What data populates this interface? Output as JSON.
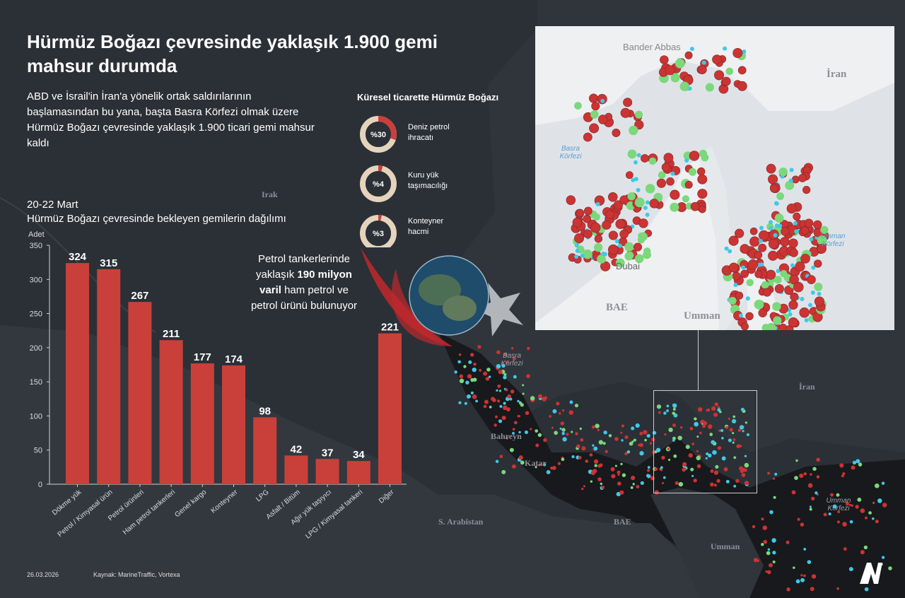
{
  "title": "Hürmüz Boğazı çevresinde yaklaşık 1.900 gemi mahsur durumda",
  "subtitle": "ABD ve İsrail'in İran'a yönelik ortak saldırılarının başlamasından bu yana, başta Basra Körfezi olmak üzere Hürmüz Boğazı çevresinde yaklaşık 1.900 ticari gemi mahsur kaldı",
  "chart_heading": {
    "date_range": "20-22 Mart",
    "description": "Hürmüz Boğazı çevresinde bekleyen gemilerin dağılımı"
  },
  "note": {
    "pre": "Petrol tankerlerinde yaklaşık ",
    "bold": "190 milyon varil",
    "post": " ham petrol ve petrol ürünü bulunuyor"
  },
  "trade_share": {
    "title": "Küresel ticarette Hürmüz Boğazı",
    "items": [
      {
        "value_label": "%30",
        "label_line1": "Deniz petrol",
        "label_line2": "ihracatı",
        "percent": 30
      },
      {
        "value_label": "%4",
        "label_line1": "Kuru yük",
        "label_line2": "taşımacılığı",
        "percent": 4
      },
      {
        "value_label": "%3",
        "label_line1": "Konteyner",
        "label_line2": "hacmi",
        "percent": 3
      }
    ]
  },
  "chart_data": {
    "type": "bar",
    "ylabel": "Adet",
    "ylim": [
      0,
      350
    ],
    "yticks": [
      0,
      50,
      100,
      150,
      200,
      250,
      300,
      350
    ],
    "categories": [
      "Dökme yük",
      "Petrol / Kimyasal ürün",
      "Petrol ürünleri",
      "Ham petrol tankerleri",
      "Genel kargo",
      "Konteyner",
      "LPG",
      "Asfalt / Bitüm",
      "Ağır yük taşıyıcı",
      "LPG / Kimyasal tankeri",
      "Diğer"
    ],
    "values": [
      324,
      315,
      267,
      211,
      177,
      174,
      98,
      42,
      37,
      34,
      221
    ],
    "bar_color": "#c9403a",
    "data_labels": true,
    "grid": false
  },
  "map_labels": {
    "irak": "Irak",
    "iran": "İran",
    "basra": "Basra Körfezi",
    "bahreyn": "Bahreyn",
    "katar": "Katar",
    "s_arabistan": "S. Arabistan",
    "bae": "BAE",
    "umman": "Umman",
    "umman_korfezi": "Umman Körfezi"
  },
  "inset_labels": {
    "bander_abbas": "Bander Abbas",
    "iran": "İran",
    "basra": "Basra Körfezi",
    "umman_korfezi": "Umman Körfezi",
    "dubai": "Dubai",
    "bae": "BAE",
    "umman": "Umman"
  },
  "footer": {
    "date": "26.03.2026",
    "source": "Kaynak: MarineTraffic, Vortexa"
  },
  "colors": {
    "background": "#2b3036",
    "bar": "#c9403a",
    "donut_track": "#e6d3bd",
    "donut_fill": "#c9403a",
    "ship_red": "#cc3333",
    "ship_green": "#7bd87b",
    "ship_cyan": "#40c8e8"
  },
  "icons": [
    "aa-logo-icon",
    "globe-icon",
    "ship-marker-icon"
  ]
}
